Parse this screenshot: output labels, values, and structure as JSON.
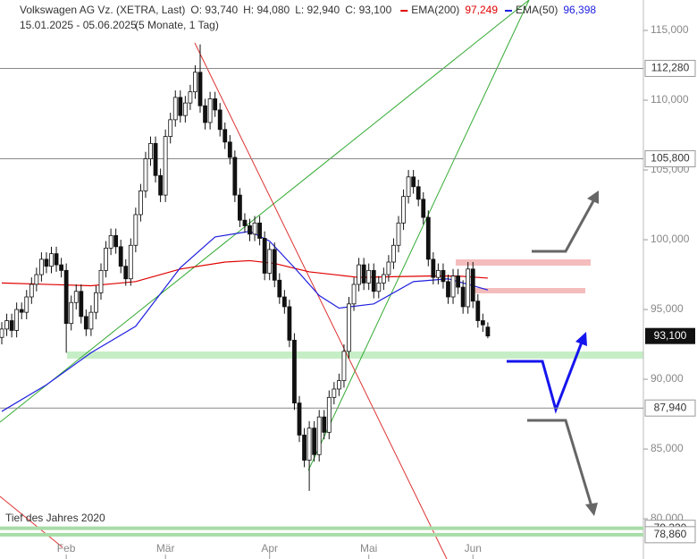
{
  "chart_data": {
    "type": "candlestick",
    "instrument": "Volkswagen AG Vz. (XETRA, Last)",
    "ohlc_labels": [
      "O: 93,740",
      "H: 94,080",
      "L: 92,940",
      "C: 93,100"
    ],
    "period": "15.01.2025 - 05.06.2025",
    "period_note": "(5 Monate, 1 Tag)",
    "categories": [
      null,
      null,
      null,
      null,
      null,
      null,
      null,
      null,
      null,
      null,
      null,
      null,
      null,
      "Feb",
      null,
      null,
      null,
      null,
      null,
      null,
      null,
      null,
      null,
      null,
      null,
      null,
      null,
      null,
      null,
      null,
      null,
      null,
      null,
      "Mär",
      null,
      null,
      null,
      null,
      null,
      null,
      null,
      null,
      null,
      null,
      null,
      null,
      null,
      null,
      null,
      null,
      null,
      null,
      null,
      null,
      "Apr",
      null,
      null,
      null,
      null,
      null,
      null,
      null,
      null,
      null,
      null,
      null,
      null,
      null,
      null,
      null,
      null,
      null,
      null,
      null,
      "Mai",
      null,
      null,
      null,
      null,
      null,
      null,
      null,
      null,
      null,
      null,
      null,
      null,
      null,
      null,
      null,
      null,
      null,
      null,
      null,
      null,
      "Jun",
      null,
      null,
      null
    ],
    "open": [
      93.0,
      93.6,
      94.2,
      93.5,
      95.0,
      94.8,
      95.9,
      96.8,
      97.5,
      98.6,
      98.1,
      99.0,
      98.2,
      97.8,
      94.0,
      95.5,
      96.3,
      94.5,
      93.6,
      94.8,
      96.2,
      97.8,
      99.4,
      100.3,
      99.5,
      98.1,
      97.2,
      99.6,
      101.8,
      103.5,
      105.8,
      106.9,
      104.6,
      103.2,
      107.4,
      108.6,
      110.2,
      108.9,
      109.8,
      110.6,
      112.0,
      109.6,
      108.4,
      110.1,
      109.3,
      107.9,
      107.0,
      105.9,
      103.2,
      101.4,
      101.0,
      100.4,
      101.2,
      100.1,
      97.6,
      99.3,
      97.1,
      95.9,
      95.2,
      92.8,
      88.3,
      86.0,
      84.2,
      86.5,
      84.6,
      87.3,
      86.2,
      88.7,
      89.3,
      89.9,
      92.0,
      95.4,
      96.8,
      98.2,
      96.9,
      97.8,
      96.3,
      96.9,
      97.5,
      98.4,
      99.6,
      101.2,
      103.1,
      104.5,
      103.8,
      102.9,
      101.6,
      98.6,
      97.3,
      97.8,
      97.0,
      95.9,
      97.4,
      96.6,
      95.2,
      97.9,
      95.6,
      94.2,
      93.74
    ],
    "high": [
      94.1,
      94.7,
      94.7,
      95.5,
      95.5,
      96.4,
      97.3,
      98.0,
      99.1,
      99.1,
      99.5,
      99.5,
      98.7,
      98.3,
      96.0,
      96.8,
      96.8,
      95.0,
      95.3,
      96.7,
      98.3,
      99.9,
      100.8,
      100.8,
      100.0,
      98.6,
      100.1,
      102.3,
      104.0,
      106.3,
      107.4,
      107.4,
      105.1,
      107.9,
      109.1,
      110.7,
      110.7,
      110.3,
      111.1,
      112.5,
      114.0,
      110.1,
      110.6,
      110.6,
      109.8,
      108.4,
      107.5,
      106.4,
      103.7,
      101.9,
      101.5,
      101.7,
      101.7,
      100.6,
      99.8,
      99.8,
      97.6,
      96.4,
      95.7,
      93.3,
      88.8,
      86.5,
      87.0,
      87.0,
      87.8,
      87.8,
      89.2,
      89.8,
      90.4,
      92.5,
      95.9,
      97.3,
      98.7,
      98.7,
      98.3,
      98.3,
      97.4,
      98.0,
      98.9,
      100.1,
      101.7,
      103.6,
      105.0,
      105.0,
      104.3,
      103.4,
      102.1,
      99.1,
      98.3,
      98.3,
      97.5,
      97.9,
      97.9,
      97.1,
      98.4,
      98.4,
      96.1,
      94.7,
      94.08
    ],
    "low": [
      92.5,
      93.1,
      93.0,
      93.0,
      94.3,
      94.3,
      95.4,
      96.3,
      97.0,
      97.6,
      97.6,
      97.7,
      97.3,
      91.9,
      93.5,
      95.0,
      94.0,
      93.1,
      93.1,
      94.3,
      95.7,
      97.3,
      98.9,
      99.0,
      97.6,
      96.7,
      96.7,
      99.1,
      101.3,
      103.0,
      105.3,
      104.1,
      102.7,
      102.7,
      106.9,
      108.1,
      108.4,
      108.4,
      109.3,
      110.1,
      109.1,
      107.9,
      107.9,
      108.8,
      107.4,
      106.5,
      105.4,
      102.7,
      100.9,
      100.5,
      99.9,
      99.9,
      99.6,
      97.1,
      97.1,
      96.6,
      95.4,
      94.7,
      92.3,
      87.8,
      85.5,
      83.7,
      82.0,
      84.1,
      84.1,
      85.7,
      85.7,
      88.2,
      88.8,
      89.4,
      91.5,
      94.9,
      96.3,
      96.4,
      96.4,
      95.8,
      95.8,
      96.4,
      97.0,
      97.9,
      99.1,
      100.7,
      102.6,
      103.3,
      102.4,
      101.1,
      98.1,
      96.8,
      96.8,
      96.5,
      95.4,
      95.4,
      96.1,
      94.7,
      94.7,
      95.1,
      93.7,
      93.4,
      92.94
    ],
    "close": [
      93.6,
      94.2,
      93.5,
      95.0,
      94.8,
      95.9,
      96.8,
      97.5,
      98.6,
      98.1,
      99.0,
      98.2,
      97.8,
      94.0,
      95.5,
      96.3,
      94.5,
      93.6,
      94.8,
      96.2,
      97.8,
      99.4,
      100.3,
      99.5,
      98.1,
      97.2,
      99.6,
      101.8,
      103.5,
      105.8,
      106.9,
      104.6,
      103.2,
      107.4,
      108.6,
      110.2,
      108.9,
      109.8,
      110.6,
      112.0,
      109.6,
      108.4,
      110.1,
      109.3,
      107.9,
      107.0,
      105.9,
      103.2,
      101.4,
      101.0,
      100.4,
      101.2,
      100.1,
      97.6,
      99.3,
      97.1,
      95.9,
      95.2,
      92.8,
      88.3,
      86.0,
      84.2,
      86.5,
      84.6,
      87.3,
      86.2,
      88.7,
      89.3,
      89.9,
      92.0,
      95.4,
      96.8,
      98.2,
      96.9,
      97.8,
      96.3,
      96.9,
      97.5,
      98.4,
      99.6,
      101.2,
      103.1,
      104.5,
      103.8,
      102.9,
      101.6,
      98.6,
      97.3,
      97.8,
      97.0,
      95.9,
      97.4,
      96.6,
      95.2,
      97.9,
      95.6,
      94.2,
      93.9,
      93.1
    ],
    "series": [
      {
        "name": "EMA(200)",
        "color": "#e00000",
        "legend_value": "97,249",
        "x": [
          0,
          9,
          18,
          27,
          36,
          45,
          50,
          55,
          62,
          72,
          86,
          92,
          98
        ],
        "values": [
          96.9,
          96.8,
          96.7,
          97.0,
          97.9,
          98.4,
          98.5,
          98.3,
          97.7,
          97.3,
          97.4,
          97.4,
          97.25
        ]
      },
      {
        "name": "EMA(50)",
        "color": "#2020e0",
        "legend_value": "96,398",
        "x": [
          0,
          9,
          18,
          27,
          36,
          43,
          50,
          54,
          59,
          64,
          68,
          75,
          83,
          90,
          98
        ],
        "values": [
          87.7,
          89.6,
          91.9,
          93.8,
          98.0,
          100.2,
          100.6,
          99.9,
          98.0,
          96.0,
          95.1,
          95.4,
          97.0,
          97.2,
          96.4
        ]
      }
    ],
    "ylim": [
      77.12,
      117.18
    ],
    "yticks": [
      {
        "value": 80,
        "label": "80,000"
      },
      {
        "value": 85,
        "label": "85,000"
      },
      {
        "value": 90,
        "label": "90,000"
      },
      {
        "value": 95,
        "label": "95,000"
      },
      {
        "value": 100,
        "label": "100,000"
      },
      {
        "value": 105,
        "label": "105,000"
      },
      {
        "value": 110,
        "label": "110,000"
      },
      {
        "value": 115,
        "label": "115,000"
      }
    ],
    "levels": [
      {
        "value": 112.28,
        "label": "112,280"
      },
      {
        "value": 105.8,
        "label": "105,800"
      },
      {
        "value": 87.94,
        "label": "87,940"
      }
    ],
    "support_levels": [
      {
        "value": 79.32,
        "label": "79,320"
      },
      {
        "value": 78.86,
        "label": "78,860"
      }
    ],
    "last_price": {
      "value": 93.1,
      "label": "93,100"
    },
    "annotation": "Tief des Jahres 2020"
  }
}
